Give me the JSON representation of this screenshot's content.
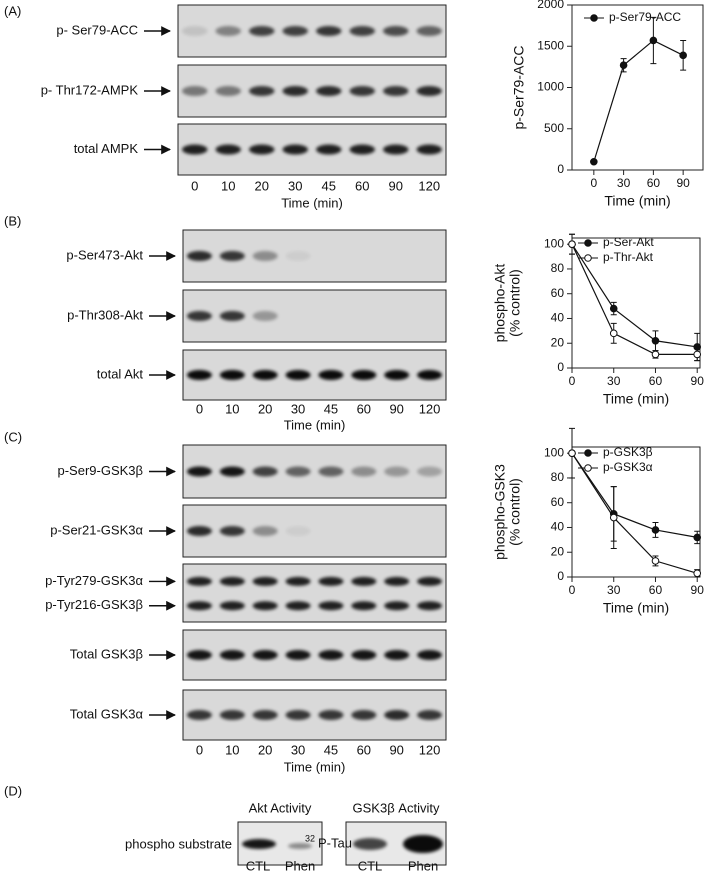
{
  "panels": [
    {
      "label": "(A)",
      "rows": [
        [
          "p- Ser79-ACC"
        ],
        [
          "p- Thr172-AMPK"
        ],
        [
          "total AMPK"
        ]
      ],
      "lanes": [
        "0",
        "10",
        "20",
        "30",
        "45",
        "60",
        "90",
        "120"
      ],
      "xlabel": "Time (min)"
    },
    {
      "label": "(B)",
      "rows": [
        [
          "p-Ser473-Akt"
        ],
        [
          "p-Thr308-Akt"
        ],
        [
          "total Akt"
        ]
      ],
      "lanes": [
        "0",
        "10",
        "20",
        "30",
        "45",
        "60",
        "90",
        "120"
      ],
      "xlabel": "Time (min)"
    },
    {
      "label": "(C)",
      "rows": [
        [
          "p-Ser9-GSK3β"
        ],
        [
          "p-Ser21-GSK3α"
        ],
        [
          "p-Tyr279-GSK3α",
          "p-Tyr216-GSK3β"
        ],
        [
          "Total GSK3β"
        ],
        [
          "Total GSK3α"
        ]
      ],
      "lanes": [
        "0",
        "10",
        "20",
        "30",
        "45",
        "60",
        "90",
        "120"
      ],
      "xlabel": "Time (min)"
    }
  ],
  "panel_d": {
    "label": "(D)",
    "akt": {
      "title": "Akt Activity",
      "row": "phospho substrate",
      "lanes": [
        "CTL",
        "Phen"
      ]
    },
    "gsk": {
      "title": "GSK3β Activity",
      "row_sup": "32",
      "row": "P-Tau",
      "lanes": [
        "CTL",
        "Phen"
      ]
    }
  },
  "chart_data": [
    {
      "type": "line",
      "ylabel": [
        "p-Ser79-ACC"
      ],
      "xlabel": "Time (min)",
      "x": [
        0,
        30,
        60,
        90
      ],
      "xlim": [
        -22,
        110
      ],
      "xticks": [
        0,
        30,
        60,
        90
      ],
      "ylim": [
        0,
        2000
      ],
      "yticks": [
        0,
        500,
        1000,
        1500,
        2000
      ],
      "series": [
        {
          "name": "p-Ser79-ACC",
          "color": "#111111",
          "marker": "filled",
          "values": [
            100,
            1270,
            1570,
            1390
          ],
          "errors": [
            0,
            80,
            280,
            180
          ]
        }
      ]
    },
    {
      "type": "line",
      "ylabel": [
        "phospho-Akt",
        "(% control)"
      ],
      "xlabel": "Time (min)",
      "x": [
        0,
        30,
        60,
        90
      ],
      "xlim": [
        0,
        92
      ],
      "xticks": [
        0,
        30,
        60,
        90
      ],
      "ylim": [
        0,
        105
      ],
      "yticks": [
        0,
        20,
        40,
        60,
        80,
        100
      ],
      "series": [
        {
          "name": "p-Ser-Akt",
          "color": "#111111",
          "marker": "filled",
          "values": [
            100,
            48,
            22,
            17
          ],
          "errors": [
            8,
            5,
            8,
            11
          ]
        },
        {
          "name": "p-Thr-Akt",
          "color": "#111111",
          "marker": "open",
          "values": [
            100,
            28,
            11,
            11
          ],
          "errors": [
            8,
            8,
            3,
            5
          ]
        }
      ]
    },
    {
      "type": "line",
      "ylabel": [
        "phospho-GSK3",
        "(% control)"
      ],
      "xlabel": "Time (min)",
      "x": [
        0,
        30,
        60,
        90
      ],
      "xlim": [
        0,
        92
      ],
      "xticks": [
        0,
        30,
        60,
        90
      ],
      "ylim": [
        0,
        105
      ],
      "yticks": [
        0,
        20,
        40,
        60,
        80,
        100
      ],
      "series": [
        {
          "name": "p-GSK3β",
          "color": "#111111",
          "marker": "filled",
          "values": [
            100,
            51,
            38,
            32
          ],
          "errors": [
            20,
            22,
            6,
            5
          ]
        },
        {
          "name": "p-GSK3α",
          "color": "#111111",
          "marker": "open",
          "values": [
            100,
            48,
            13,
            3
          ],
          "errors": [
            0,
            25,
            4,
            3
          ]
        }
      ]
    }
  ]
}
